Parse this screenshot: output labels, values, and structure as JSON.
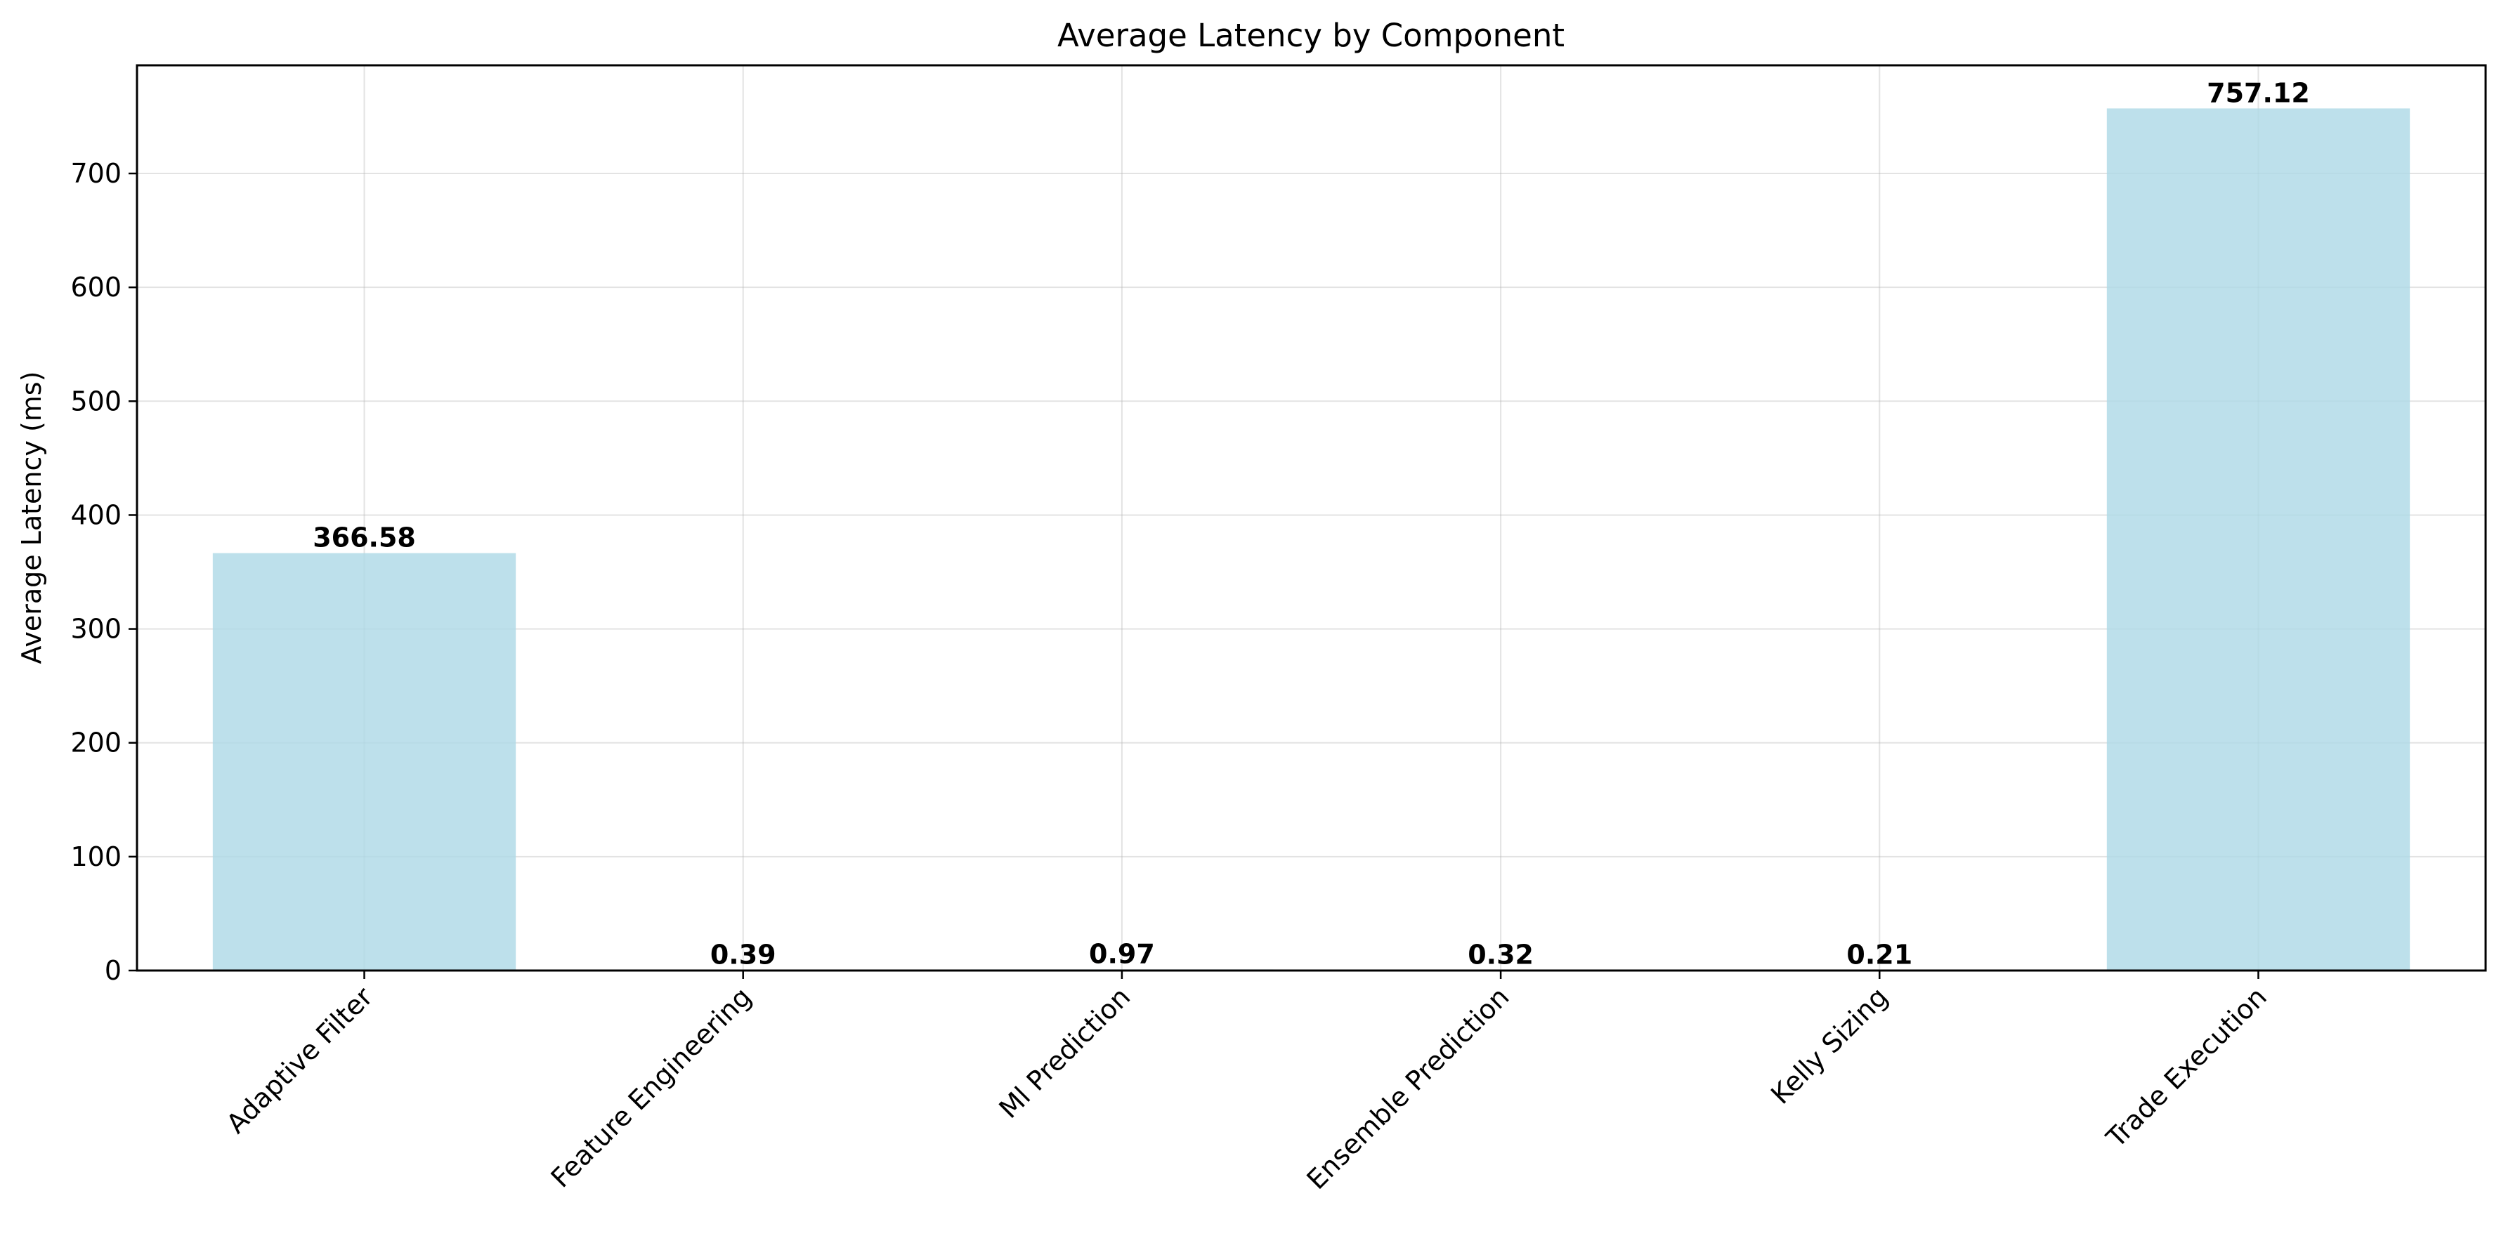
{
  "chart_data": {
    "type": "bar",
    "title": "Average Latency by Component",
    "xlabel": "",
    "ylabel": "Average Latency (ms)",
    "categories": [
      "Adaptive Filter",
      "Feature Engineering",
      "Ml Prediction",
      "Ensemble Prediction",
      "Kelly Sizing",
      "Trade Execution"
    ],
    "values": [
      366.58,
      0.39,
      0.97,
      0.32,
      0.21,
      757.12
    ],
    "value_labels": [
      "366.58",
      "0.39",
      "0.97",
      "0.32",
      "0.21",
      "757.12"
    ],
    "ylim": [
      0,
      795
    ],
    "yticks": [
      0,
      100,
      200,
      300,
      400,
      500,
      600,
      700
    ],
    "grid": true,
    "legend": "none",
    "bar_color": "#add8e6"
  }
}
